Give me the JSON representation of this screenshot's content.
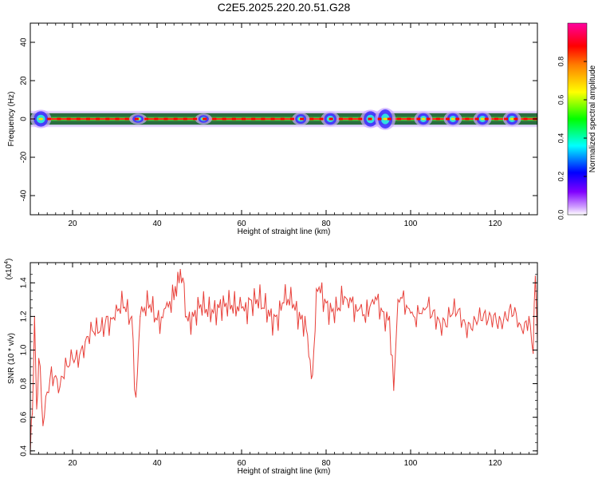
{
  "title": "C2E5.2025.220.20.51.G28",
  "colors": {
    "snr_line": "#e8403a",
    "frame": "#000000",
    "background": "#ffffff"
  },
  "chart_data": [
    {
      "type": "heatmap",
      "xlabel": "Height of straight line (km)",
      "ylabel": "Frequency (Hz)",
      "xlim": [
        10,
        130
      ],
      "ylim": [
        -50,
        50
      ],
      "xticks": [
        20,
        40,
        60,
        80,
        100,
        120
      ],
      "xtick_labels": [
        "20",
        "40",
        "60",
        "80",
        "100",
        "120"
      ],
      "yticks": [
        -40,
        -20,
        0,
        20,
        40
      ],
      "ytick_labels": [
        "-40",
        "-20",
        "0",
        "20",
        "40"
      ],
      "grid": false,
      "colorbar": {
        "label": "Normalized spectral amplitude",
        "range": [
          0,
          1
        ],
        "ticks": [
          0.0,
          0.2,
          0.4,
          0.6,
          0.8
        ],
        "tick_labels": [
          "0.0",
          "0.2",
          "0.4",
          "0.6",
          "0.8"
        ],
        "colormap": "rainbow (magenta-blue-cyan-green-yellow-red-magenta)"
      },
      "band": {
        "center_frequency": 0,
        "core_halfwidth": 1,
        "outer_halfwidth": 3,
        "blobs": [
          {
            "x": 12.5,
            "halfwidth": 4,
            "amplitude": 1.0
          },
          {
            "x": 35.5,
            "halfwidth": 2,
            "amplitude": 0.5
          },
          {
            "x": 51,
            "halfwidth": 2,
            "amplitude": 0.4
          },
          {
            "x": 74,
            "halfwidth": 2.5,
            "amplitude": 0.5
          },
          {
            "x": 81,
            "halfwidth": 3,
            "amplitude": 0.7
          },
          {
            "x": 90.5,
            "halfwidth": 4,
            "amplitude": 0.9
          },
          {
            "x": 94,
            "halfwidth": 5,
            "amplitude": 1.0
          },
          {
            "x": 103,
            "halfwidth": 3,
            "amplitude": 0.6
          },
          {
            "x": 110,
            "halfwidth": 3,
            "amplitude": 0.6
          },
          {
            "x": 117,
            "halfwidth": 3,
            "amplitude": 0.6
          },
          {
            "x": 124,
            "halfwidth": 3,
            "amplitude": 0.6
          }
        ]
      }
    },
    {
      "type": "line",
      "xlabel": "Height of straight line (km)",
      "ylabel": "SNR (10 * v/v)",
      "y_multiplier_label": "(x10",
      "y_multiplier_exponent": "4",
      "y_multiplier_close": ")",
      "xlim": [
        10,
        130
      ],
      "ylim": [
        0.38,
        1.52
      ],
      "xticks": [
        20,
        40,
        60,
        80,
        100,
        120
      ],
      "xtick_labels": [
        "20",
        "40",
        "60",
        "80",
        "100",
        "120"
      ],
      "yticks": [
        0.4,
        0.6,
        0.8,
        1.0,
        1.2,
        1.4
      ],
      "ytick_labels": [
        "0.4",
        "0.6",
        "0.8",
        "1.0",
        "1.2",
        "1.4"
      ],
      "grid": false,
      "series": [
        {
          "x": [
            10,
            10.5,
            11,
            11.5,
            12,
            13,
            14,
            15,
            17,
            20,
            23,
            26,
            28,
            30,
            32,
            34,
            35,
            36,
            38,
            40,
            42,
            44,
            45.5,
            47,
            50,
            52,
            55,
            58,
            60,
            62,
            65,
            68,
            70,
            72,
            75,
            76.5,
            78,
            80,
            83,
            85,
            88,
            90,
            91,
            93,
            95,
            96,
            97,
            100,
            103,
            105,
            108,
            110,
            113,
            115,
            118,
            120,
            122,
            124,
            126,
            128,
            129,
            129.5,
            130
          ],
          "y": [
            0.38,
            0.62,
            1.2,
            0.65,
            0.95,
            0.55,
            0.75,
            0.9,
            0.78,
            0.95,
            1.05,
            1.1,
            1.2,
            1.18,
            1.25,
            1.2,
            0.72,
            1.2,
            1.25,
            1.18,
            1.25,
            1.3,
            1.48,
            1.2,
            1.25,
            1.2,
            1.3,
            1.22,
            1.25,
            1.3,
            1.25,
            1.2,
            1.28,
            1.25,
            1.2,
            0.83,
            1.35,
            1.28,
            1.25,
            1.3,
            1.25,
            1.2,
            1.3,
            1.25,
            1.2,
            0.76,
            1.3,
            1.22,
            1.25,
            1.2,
            1.18,
            1.22,
            1.15,
            1.2,
            1.15,
            1.22,
            1.18,
            1.2,
            1.15,
            1.2,
            0.98,
            1.44,
            1.05
          ]
        }
      ]
    }
  ]
}
